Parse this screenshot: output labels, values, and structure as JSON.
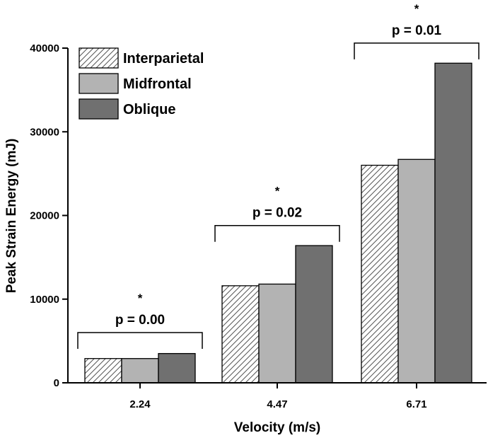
{
  "chart_data": {
    "type": "bar",
    "categories": [
      "2.24",
      "4.47",
      "6.71"
    ],
    "series": [
      {
        "name": "Interparietal",
        "values": [
          2900,
          11600,
          26000
        ],
        "color": "#ffffff",
        "pattern": "hatch"
      },
      {
        "name": "Midfrontal",
        "values": [
          2900,
          11800,
          26700
        ],
        "color": "#b3b3b3",
        "pattern": "solid"
      },
      {
        "name": "Oblique",
        "values": [
          3500,
          16400,
          38200
        ],
        "color": "#707070",
        "pattern": "solid"
      }
    ],
    "xlabel": "Velocity (m/s)",
    "ylabel": "Peak Strain Energy (mJ)",
    "ylim": [
      0,
      40000
    ],
    "yticks": [
      0,
      10000,
      20000,
      30000,
      40000
    ],
    "ytick_labels": [
      "0",
      "10000",
      "20000",
      "30000",
      "40000"
    ],
    "legend_position": "top-left",
    "annotations": [
      {
        "category": "2.24",
        "label": "p = 0.00",
        "mark": "*",
        "bracket_value": 6000
      },
      {
        "category": "4.47",
        "label": "p = 0.02",
        "mark": "*",
        "bracket_value": 18800
      },
      {
        "category": "6.71",
        "label": "p = 0.01",
        "mark": "*",
        "bracket_value": 40600
      }
    ]
  }
}
